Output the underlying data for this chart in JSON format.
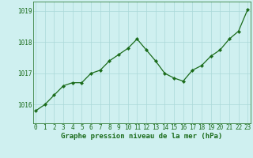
{
  "x": [
    0,
    1,
    2,
    3,
    4,
    5,
    6,
    7,
    8,
    9,
    10,
    11,
    12,
    13,
    14,
    15,
    16,
    17,
    18,
    19,
    20,
    21,
    22,
    23
  ],
  "y": [
    1015.8,
    1016.0,
    1016.3,
    1016.6,
    1016.7,
    1016.7,
    1017.0,
    1017.1,
    1017.4,
    1017.6,
    1017.8,
    1018.1,
    1017.75,
    1017.4,
    1017.0,
    1016.85,
    1016.75,
    1017.1,
    1017.25,
    1017.55,
    1017.75,
    1018.1,
    1018.35,
    1019.05
  ],
  "line_color": "#1a6b1a",
  "marker_color": "#1a6b1a",
  "bg_color": "#cff0f0",
  "grid_color": "#aad8d8",
  "xlabel": "Graphe pression niveau de la mer (hPa)",
  "label_color": "#1a6b1a",
  "ytick_values": [
    1016,
    1017,
    1018,
    1019
  ],
  "ylim": [
    1015.4,
    1019.3
  ],
  "xlim": [
    -0.3,
    23.3
  ],
  "xlabel_fontsize": 6.5,
  "tick_fontsize": 5.5
}
